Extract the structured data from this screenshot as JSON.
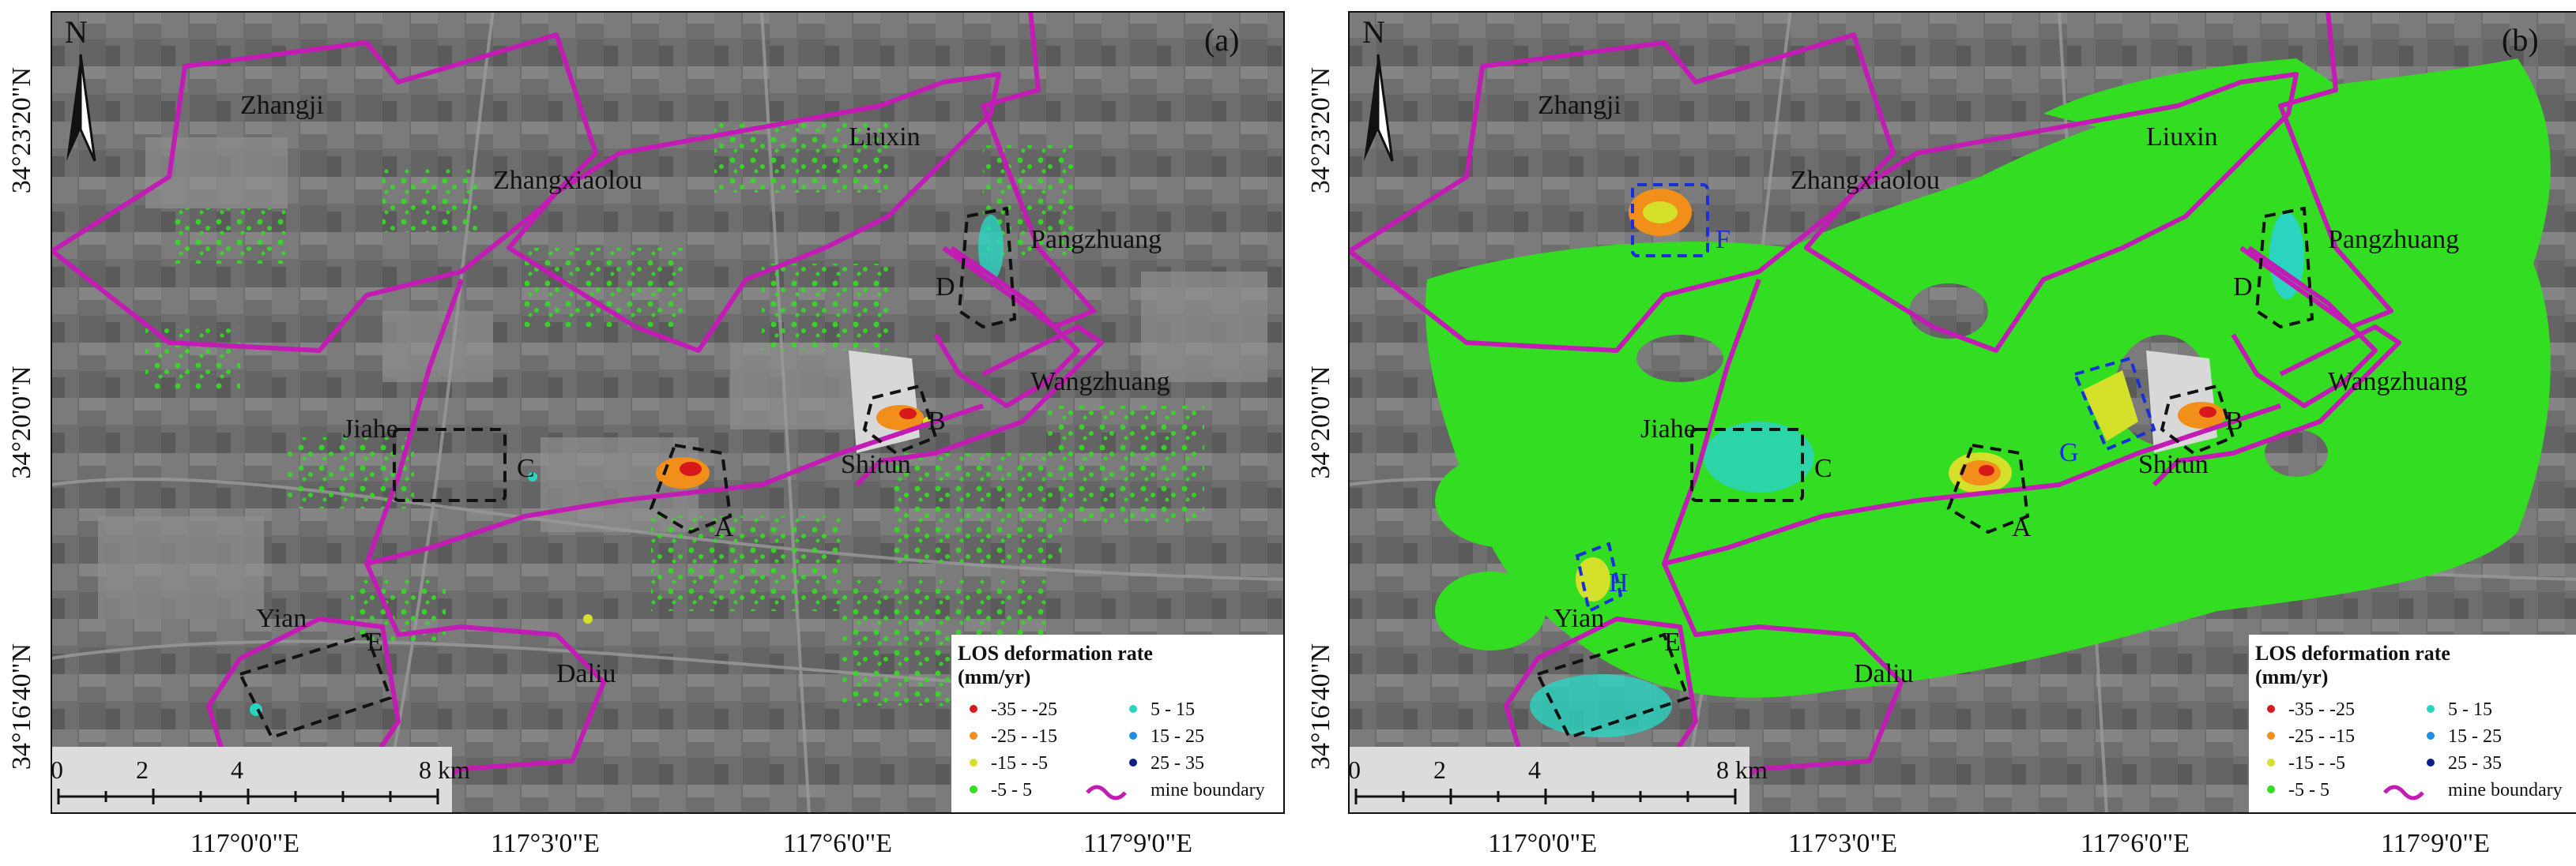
{
  "panels": [
    {
      "id": "a",
      "label": "(a)",
      "north": "N",
      "places": [
        "Zhangji",
        "Zhangxiaolou",
        "Liuxin",
        "Pangzhuang",
        "Wangzhuang",
        "Jiahe",
        "Shitun",
        "Yian",
        "Daliu"
      ],
      "zones": [
        "A",
        "B",
        "C",
        "D",
        "E"
      ],
      "scale_ticks": [
        "0",
        "2",
        "4",
        "8 km"
      ],
      "legend": {
        "title": "LOS deformation rate",
        "unit": "(mm/yr)",
        "classes": [
          {
            "label": "-35 - -25",
            "color": "#d7191c"
          },
          {
            "label": "-25 - -15",
            "color": "#f28f1a"
          },
          {
            "label": "-15 - -5",
            "color": "#d4e02a"
          },
          {
            "label": "-5 - 5",
            "color": "#33dd22"
          },
          {
            "label": "5 - 15",
            "color": "#2ad4c0"
          },
          {
            "label": "15 - 25",
            "color": "#1e8fe8"
          },
          {
            "label": "25 - 35",
            "color": "#0b1f8a"
          }
        ],
        "boundary_label": "mine boundary",
        "boundary_color": "#c21cb4"
      }
    },
    {
      "id": "b",
      "label": "(b)",
      "north": "N",
      "places": [
        "Zhangji",
        "Zhangxiaolou",
        "Liuxin",
        "Pangzhuang",
        "Wangzhuang",
        "Jiahe",
        "Shitun",
        "Yian",
        "Daliu"
      ],
      "zones": [
        "A",
        "B",
        "C",
        "D",
        "E"
      ],
      "zones_extra": [
        "F",
        "G",
        "H"
      ],
      "scale_ticks": [
        "0",
        "2",
        "4",
        "8 km"
      ],
      "legend": {
        "title": "LOS deformation rate",
        "unit": "(mm/yr)",
        "classes": [
          {
            "label": "-35 - -25",
            "color": "#d7191c"
          },
          {
            "label": "-25 - -15",
            "color": "#f28f1a"
          },
          {
            "label": "-15 - -5",
            "color": "#d4e02a"
          },
          {
            "label": "-5 - 5",
            "color": "#33dd22"
          },
          {
            "label": "5 - 15",
            "color": "#2ad4c0"
          },
          {
            "label": "15 - 25",
            "color": "#1e8fe8"
          },
          {
            "label": "25 - 35",
            "color": "#0b1f8a"
          }
        ],
        "boundary_label": "mine boundary",
        "boundary_color": "#c21cb4"
      }
    }
  ],
  "lat_labels": [
    "34°23'20\"N",
    "34°20'0\"N",
    "34°16'40\"N"
  ],
  "lon_labels": [
    "117°0'0\"E",
    "117°3'0\"E",
    "117°6'0\"E",
    "117°9'0\"E"
  ]
}
